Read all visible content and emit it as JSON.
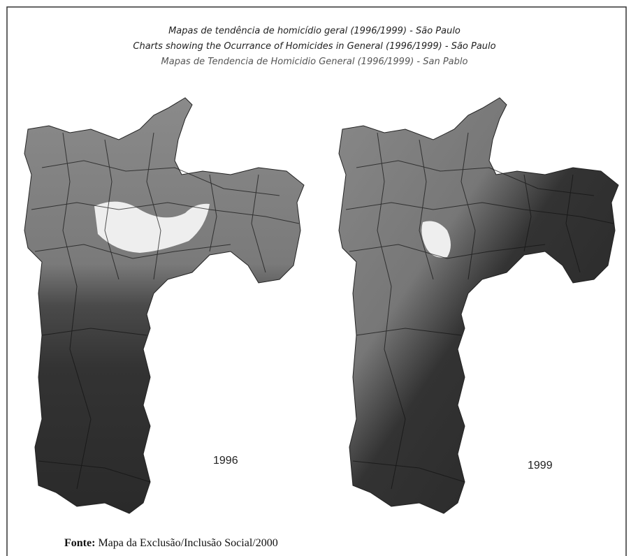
{
  "title_lines": [
    "Mapas de tendência de homicídio geral (1996/1999) - São Paulo",
    "Charts showing the Ocurrance of Homicides in General  (1996/1999) - São Paulo",
    "Mapas de Tendencia de Homicidio General (1996/1999) - San Pablo"
  ],
  "maps": [
    {
      "label": "1996"
    },
    {
      "label": "1999"
    }
  ],
  "source": {
    "label": "Fonte:",
    "text": "Mapa da Exclusão/Inclusão Social/2000"
  }
}
